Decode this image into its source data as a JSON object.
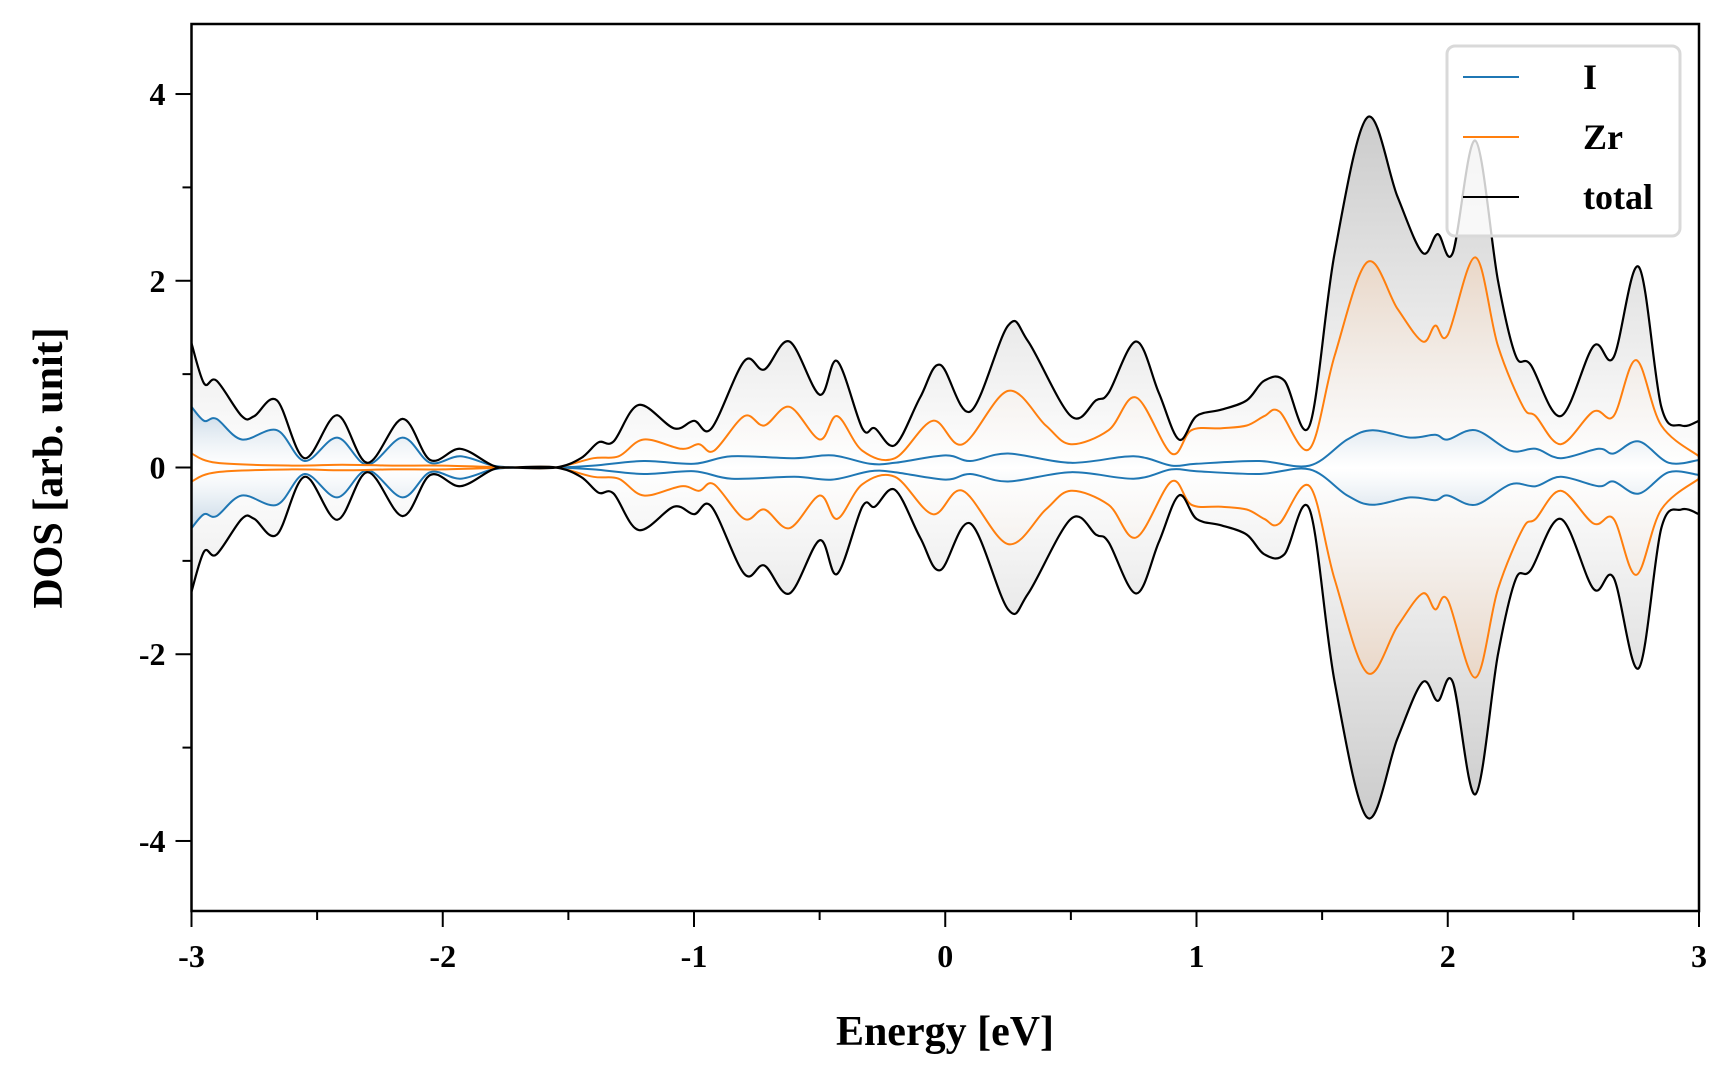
{
  "chart_data": {
    "type": "line",
    "title": "",
    "xlabel": "Energy [eV]",
    "ylabel": "DOS [arb. unit]",
    "xlim": [
      -3,
      3
    ],
    "ylim": [
      -4.75,
      4.75
    ],
    "xticks": [
      -3,
      -2,
      -1,
      0,
      1,
      2,
      3
    ],
    "xtick_labels": [
      "-3",
      "-2",
      "-1",
      "0",
      "1",
      "2",
      "3"
    ],
    "yticks": [
      -4,
      -2,
      0,
      2,
      4
    ],
    "ytick_labels": [
      "-4",
      "-2",
      "0",
      "2",
      "4"
    ],
    "grid": false,
    "legend_position": "top-right",
    "mirrored_spin_down": true,
    "series": [
      {
        "name": "I",
        "color": "#1f77b4",
        "x": [
          -3,
          -2.95,
          -2.9,
          -2.8,
          -2.66,
          -2.55,
          -2.42,
          -2.3,
          -2.16,
          -2.05,
          -1.93,
          -1.8,
          -1.7,
          -1.55,
          -1.4,
          -1.2,
          -1.0,
          -0.85,
          -0.6,
          -0.45,
          -0.3,
          -0.2,
          0,
          0.1,
          0.25,
          0.5,
          0.75,
          0.9,
          1.0,
          1.25,
          1.45,
          1.6,
          1.7,
          1.85,
          1.95,
          2.0,
          2.11,
          2.25,
          2.35,
          2.45,
          2.6,
          2.66,
          2.76,
          2.88,
          3.0
        ],
        "y": [
          0.65,
          0.5,
          0.52,
          0.3,
          0.4,
          0.07,
          0.32,
          0.03,
          0.32,
          0.05,
          0.12,
          0.02,
          0,
          0,
          0.02,
          0.07,
          0.04,
          0.12,
          0.1,
          0.13,
          0.04,
          0.05,
          0.13,
          0.07,
          0.15,
          0.05,
          0.12,
          0.02,
          0.04,
          0.07,
          0.02,
          0.3,
          0.4,
          0.32,
          0.35,
          0.3,
          0.4,
          0.18,
          0.2,
          0.1,
          0.2,
          0.15,
          0.28,
          0.05,
          0.08
        ]
      },
      {
        "name": "Zr",
        "color": "#ff7f0e",
        "x": [
          -3,
          -2.9,
          -2.6,
          -2.4,
          -2.2,
          -2.0,
          -1.72,
          -1.55,
          -1.4,
          -1.3,
          -1.2,
          -1.05,
          -0.98,
          -0.92,
          -0.8,
          -0.72,
          -0.62,
          -0.5,
          -0.43,
          -0.33,
          -0.2,
          -0.05,
          0.07,
          0.25,
          0.4,
          0.5,
          0.65,
          0.76,
          0.9,
          0.98,
          1.1,
          1.2,
          1.27,
          1.33,
          1.45,
          1.55,
          1.68,
          1.8,
          1.9,
          1.95,
          2.0,
          2.11,
          2.2,
          2.3,
          2.35,
          2.45,
          2.58,
          2.66,
          2.75,
          2.85,
          3.0
        ],
        "y": [
          0.15,
          0.05,
          0.02,
          0.03,
          0.02,
          0.02,
          0,
          0,
          0.1,
          0.12,
          0.3,
          0.2,
          0.25,
          0.18,
          0.55,
          0.45,
          0.65,
          0.3,
          0.55,
          0.18,
          0.1,
          0.5,
          0.25,
          0.82,
          0.45,
          0.25,
          0.4,
          0.75,
          0.15,
          0.4,
          0.42,
          0.45,
          0.55,
          0.6,
          0.2,
          1.2,
          2.2,
          1.7,
          1.35,
          1.52,
          1.42,
          2.25,
          1.3,
          0.65,
          0.55,
          0.25,
          0.6,
          0.55,
          1.15,
          0.45,
          0.12
        ]
      },
      {
        "name": "total",
        "color": "#000000",
        "x": [
          -3,
          -2.95,
          -2.9,
          -2.8,
          -2.75,
          -2.66,
          -2.55,
          -2.42,
          -2.3,
          -2.16,
          -2.05,
          -1.93,
          -1.8,
          -1.72,
          -1.55,
          -1.45,
          -1.38,
          -1.32,
          -1.22,
          -1.08,
          -1.0,
          -0.93,
          -0.8,
          -0.72,
          -0.62,
          -0.5,
          -0.43,
          -0.33,
          -0.28,
          -0.2,
          -0.1,
          -0.02,
          0.1,
          0.25,
          0.33,
          0.5,
          0.6,
          0.65,
          0.76,
          0.85,
          0.93,
          1.0,
          1.1,
          1.2,
          1.27,
          1.35,
          1.45,
          1.55,
          1.68,
          1.8,
          1.9,
          1.96,
          2.02,
          2.11,
          2.2,
          2.27,
          2.33,
          2.45,
          2.58,
          2.66,
          2.76,
          2.85,
          2.93,
          3.0
        ],
        "y": [
          1.33,
          0.9,
          0.93,
          0.55,
          0.55,
          0.72,
          0.1,
          0.56,
          0.05,
          0.52,
          0.08,
          0.2,
          0.02,
          0,
          0,
          0.1,
          0.27,
          0.28,
          0.67,
          0.42,
          0.5,
          0.42,
          1.14,
          1.05,
          1.35,
          0.78,
          1.14,
          0.42,
          0.42,
          0.24,
          0.75,
          1.1,
          0.6,
          1.52,
          1.35,
          0.55,
          0.72,
          0.8,
          1.35,
          0.8,
          0.3,
          0.55,
          0.62,
          0.72,
          0.93,
          0.93,
          0.45,
          2.3,
          3.75,
          2.9,
          2.3,
          2.5,
          2.3,
          3.5,
          2.0,
          1.2,
          1.1,
          0.55,
          1.3,
          1.18,
          2.15,
          0.65,
          0.45,
          0.5
        ]
      }
    ]
  }
}
